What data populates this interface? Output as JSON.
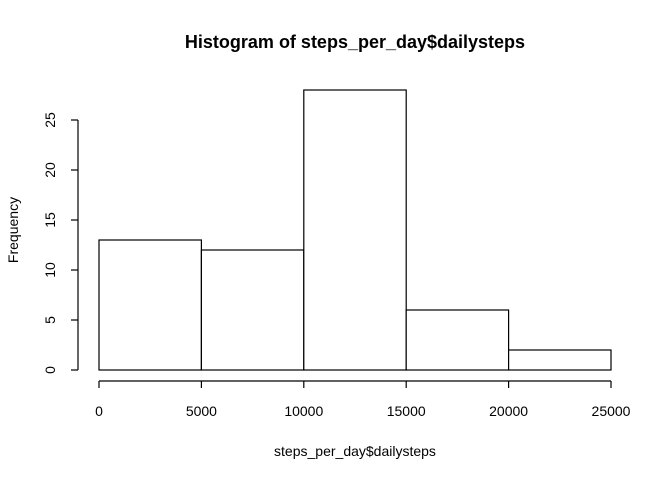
{
  "chart_data": {
    "type": "bar",
    "title": "Histogram of steps_per_day$dailysteps",
    "xlabel": "steps_per_day$dailysteps",
    "ylabel": "Frequency",
    "bins": [
      {
        "from": 0,
        "to": 5000,
        "count": 13
      },
      {
        "from": 5000,
        "to": 10000,
        "count": 12
      },
      {
        "from": 10000,
        "to": 15000,
        "count": 28
      },
      {
        "from": 15000,
        "to": 20000,
        "count": 6
      },
      {
        "from": 20000,
        "to": 25000,
        "count": 2
      }
    ],
    "xlim": [
      0,
      25000
    ],
    "ylim": [
      0,
      28
    ],
    "x_ticks": [
      0,
      5000,
      10000,
      15000,
      20000,
      25000
    ],
    "x_tick_labels": [
      "0",
      "5000",
      "10000",
      "15000",
      "20000",
      "25000"
    ],
    "y_ticks": [
      0,
      5,
      10,
      15,
      20,
      25
    ],
    "y_tick_labels": [
      "0",
      "5",
      "10",
      "15",
      "20",
      "25"
    ],
    "grid": false,
    "legend": "none",
    "bar_fill": "#ffffff",
    "bar_stroke": "#000000"
  }
}
